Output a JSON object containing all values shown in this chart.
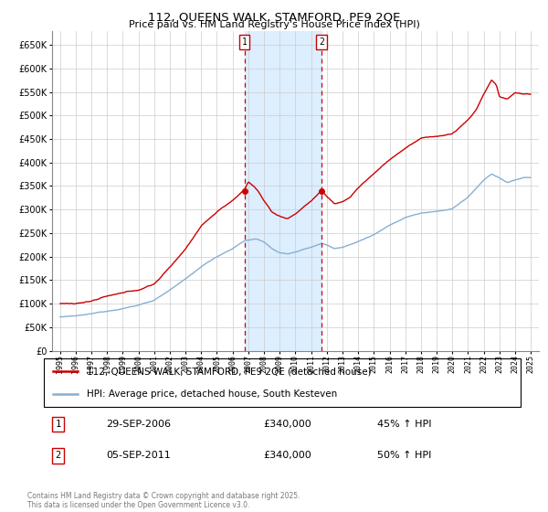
{
  "title": "112, QUEENS WALK, STAMFORD, PE9 2QE",
  "subtitle": "Price paid vs. HM Land Registry's House Price Index (HPI)",
  "legend_line1": "112, QUEENS WALK, STAMFORD, PE9 2QE (detached house)",
  "legend_line2": "HPI: Average price, detached house, South Kesteven",
  "red_color": "#cc0000",
  "blue_color": "#88afd0",
  "shading_color": "#ddeeff",
  "annotation1_date": "29-SEP-2006",
  "annotation1_price": "£340,000",
  "annotation1_hpi": "45% ↑ HPI",
  "annotation2_date": "05-SEP-2011",
  "annotation2_price": "£340,000",
  "annotation2_hpi": "50% ↑ HPI",
  "vline1_x": 2006.75,
  "vline2_x": 2011.67,
  "dot1_x": 2006.75,
  "dot1_y": 340000,
  "dot2_x": 2011.67,
  "dot2_y": 340000,
  "ylim": [
    0,
    680000
  ],
  "xlim": [
    1994.5,
    2025.5
  ],
  "yticks": [
    0,
    50000,
    100000,
    150000,
    200000,
    250000,
    300000,
    350000,
    400000,
    450000,
    500000,
    550000,
    600000,
    650000
  ],
  "background_color": "#ffffff",
  "grid_color": "#cccccc",
  "footer": "Contains HM Land Registry data © Crown copyright and database right 2025.\nThis data is licensed under the Open Government Licence v3.0."
}
